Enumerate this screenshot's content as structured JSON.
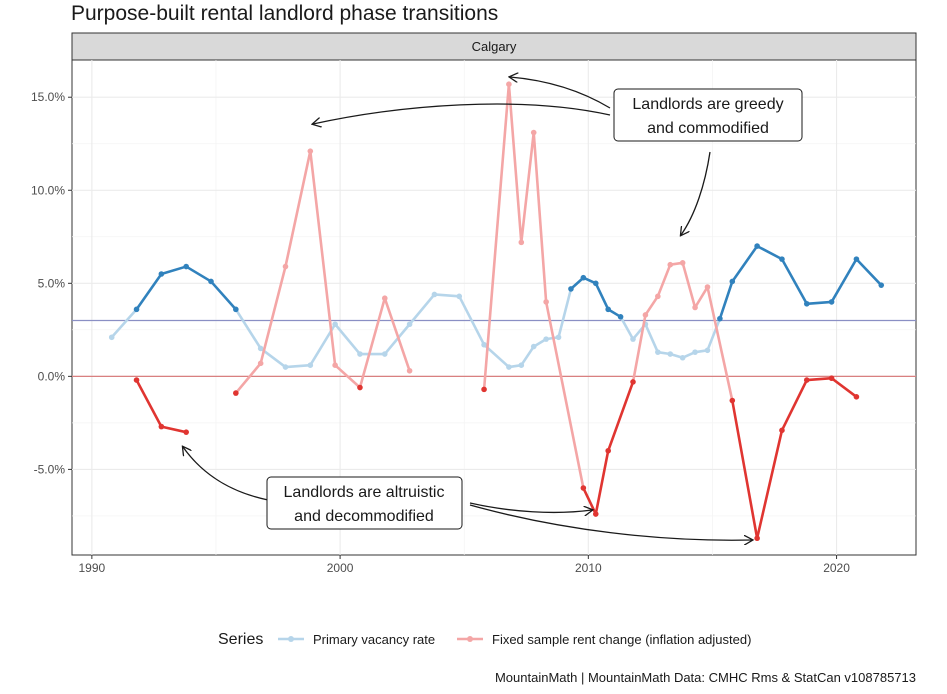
{
  "chart_data": {
    "type": "line",
    "title": "Purpose-built rental landlord phase transitions",
    "panel": "Calgary",
    "xlabel": "",
    "ylabel": "",
    "xlim": [
      1989.2,
      2023.2
    ],
    "ylim": [
      -9.6,
      17.0
    ],
    "x_ticks": [
      1990,
      2000,
      2010,
      2020
    ],
    "x_tick_labels": [
      "1990",
      "2000",
      "2010",
      "2020"
    ],
    "y_ticks": [
      -5,
      0,
      5,
      10,
      15
    ],
    "y_tick_labels": [
      "-5.0%",
      "0.0%",
      "5.0%",
      "10.0%",
      "15.0%"
    ],
    "grid": true,
    "legend": {
      "title": "Series",
      "position": "bottom",
      "entries": [
        "Primary vacancy rate",
        "Fixed sample rent change (inflation adjusted)"
      ]
    },
    "series": [
      {
        "name": "Primary vacancy rate",
        "base_color": "#b6d5ea",
        "highlight_color": "#3182bd",
        "points": [
          {
            "x": 1990.8,
            "y": 2.1,
            "h": false
          },
          {
            "x": 1991.8,
            "y": 3.6,
            "h": true
          },
          {
            "x": 1992.8,
            "y": 5.5,
            "h": true
          },
          {
            "x": 1993.8,
            "y": 5.9,
            "h": true
          },
          {
            "x": 1994.8,
            "y": 5.1,
            "h": true
          },
          {
            "x": 1995.8,
            "y": 3.6,
            "h": true
          },
          {
            "x": 1996.8,
            "y": 1.5,
            "h": false
          },
          {
            "x": 1997.8,
            "y": 0.5,
            "h": false
          },
          {
            "x": 1998.8,
            "y": 0.6,
            "h": false
          },
          {
            "x": 1999.8,
            "y": 2.8,
            "h": false
          },
          {
            "x": 2000.8,
            "y": 1.2,
            "h": false
          },
          {
            "x": 2001.8,
            "y": 1.2,
            "h": false
          },
          {
            "x": 2002.8,
            "y": 2.8,
            "h": false
          },
          {
            "x": 2003.8,
            "y": 4.4,
            "h": false
          },
          {
            "x": 2004.8,
            "y": 4.3,
            "h": false
          },
          {
            "x": 2005.8,
            "y": 1.7,
            "h": false
          },
          {
            "x": 2006.8,
            "y": 0.5,
            "h": false
          },
          {
            "x": 2007.3,
            "y": 0.6,
            "h": false
          },
          {
            "x": 2007.8,
            "y": 1.6,
            "h": false
          },
          {
            "x": 2008.3,
            "y": 2.0,
            "h": false
          },
          {
            "x": 2008.8,
            "y": 2.1,
            "h": false
          },
          {
            "x": 2009.3,
            "y": 4.7,
            "h": true
          },
          {
            "x": 2009.8,
            "y": 5.3,
            "h": true
          },
          {
            "x": 2010.3,
            "y": 5.0,
            "h": true
          },
          {
            "x": 2010.8,
            "y": 3.6,
            "h": true
          },
          {
            "x": 2011.3,
            "y": 3.2,
            "h": true
          },
          {
            "x": 2011.8,
            "y": 2.0,
            "h": false
          },
          {
            "x": 2012.3,
            "y": 2.8,
            "h": false
          },
          {
            "x": 2012.8,
            "y": 1.3,
            "h": false
          },
          {
            "x": 2013.3,
            "y": 1.2,
            "h": false
          },
          {
            "x": 2013.8,
            "y": 1.0,
            "h": false
          },
          {
            "x": 2014.3,
            "y": 1.3,
            "h": false
          },
          {
            "x": 2014.8,
            "y": 1.4,
            "h": false
          },
          {
            "x": 2015.3,
            "y": 3.1,
            "h": true
          },
          {
            "x": 2015.8,
            "y": 5.1,
            "h": true
          },
          {
            "x": 2016.8,
            "y": 7.0,
            "h": true
          },
          {
            "x": 2017.8,
            "y": 6.3,
            "h": true
          },
          {
            "x": 2018.8,
            "y": 3.9,
            "h": true
          },
          {
            "x": 2019.8,
            "y": 4.0,
            "h": true
          },
          {
            "x": 2020.8,
            "y": 6.3,
            "h": true
          },
          {
            "x": 2021.8,
            "y": 4.9,
            "h": true
          }
        ]
      },
      {
        "name": "Fixed sample rent change (inflation adjusted)",
        "base_color": "#f4a6a6",
        "highlight_color": "#e03531",
        "segments": [
          [
            {
              "x": 1991.8,
              "y": -0.2,
              "h": true
            },
            {
              "x": 1992.8,
              "y": -2.7,
              "h": true
            },
            {
              "x": 1993.8,
              "y": -3.0,
              "h": true
            }
          ],
          [
            {
              "x": 1995.8,
              "y": -0.9,
              "h": true
            },
            {
              "x": 1996.8,
              "y": 0.7,
              "h": false
            },
            {
              "x": 1997.8,
              "y": 5.9,
              "h": false
            },
            {
              "x": 1998.8,
              "y": 12.1,
              "h": false
            },
            {
              "x": 1999.8,
              "y": 0.6,
              "h": false
            },
            {
              "x": 2000.8,
              "y": -0.6,
              "h": true
            },
            {
              "x": 2001.8,
              "y": 4.2,
              "h": false
            },
            {
              "x": 2002.8,
              "y": 0.3,
              "h": false
            }
          ],
          [
            {
              "x": 2005.8,
              "y": -0.7,
              "h": true
            },
            {
              "x": 2006.8,
              "y": 15.7,
              "h": false
            },
            {
              "x": 2007.3,
              "y": 7.2,
              "h": false
            },
            {
              "x": 2007.8,
              "y": 13.1,
              "h": false
            },
            {
              "x": 2008.3,
              "y": 4.0,
              "h": false
            },
            {
              "x": 2009.8,
              "y": -6.0,
              "h": true
            },
            {
              "x": 2010.3,
              "y": -7.4,
              "h": true
            },
            {
              "x": 2010.8,
              "y": -4.0,
              "h": true
            },
            {
              "x": 2011.8,
              "y": -0.3,
              "h": true
            },
            {
              "x": 2012.3,
              "y": 3.3,
              "h": false
            },
            {
              "x": 2012.8,
              "y": 4.3,
              "h": false
            },
            {
              "x": 2013.3,
              "y": 6.0,
              "h": false
            },
            {
              "x": 2013.8,
              "y": 6.1,
              "h": false
            },
            {
              "x": 2014.3,
              "y": 3.7,
              "h": false
            },
            {
              "x": 2014.8,
              "y": 4.8,
              "h": false
            },
            {
              "x": 2015.8,
              "y": -1.3,
              "h": true
            },
            {
              "x": 2016.8,
              "y": -8.7,
              "h": true
            },
            {
              "x": 2017.8,
              "y": -2.9,
              "h": true
            },
            {
              "x": 2018.8,
              "y": -0.2,
              "h": true
            },
            {
              "x": 2019.8,
              "y": -0.1,
              "h": true
            },
            {
              "x": 2020.8,
              "y": -1.1,
              "h": true
            }
          ]
        ]
      }
    ],
    "reference_lines": [
      {
        "y": 3.0,
        "color": "#8a8fc4"
      },
      {
        "y": 0.0,
        "color": "#d98080"
      }
    ],
    "annotations": [
      {
        "label_lines": [
          "Landlords are greedy",
          "and commodified"
        ]
      },
      {
        "label_lines": [
          "Landlords are altruistic",
          "and decommodified"
        ]
      }
    ],
    "caption": "MountainMath | MountainMath Data: CMHC Rms & StatCan v108785713"
  }
}
